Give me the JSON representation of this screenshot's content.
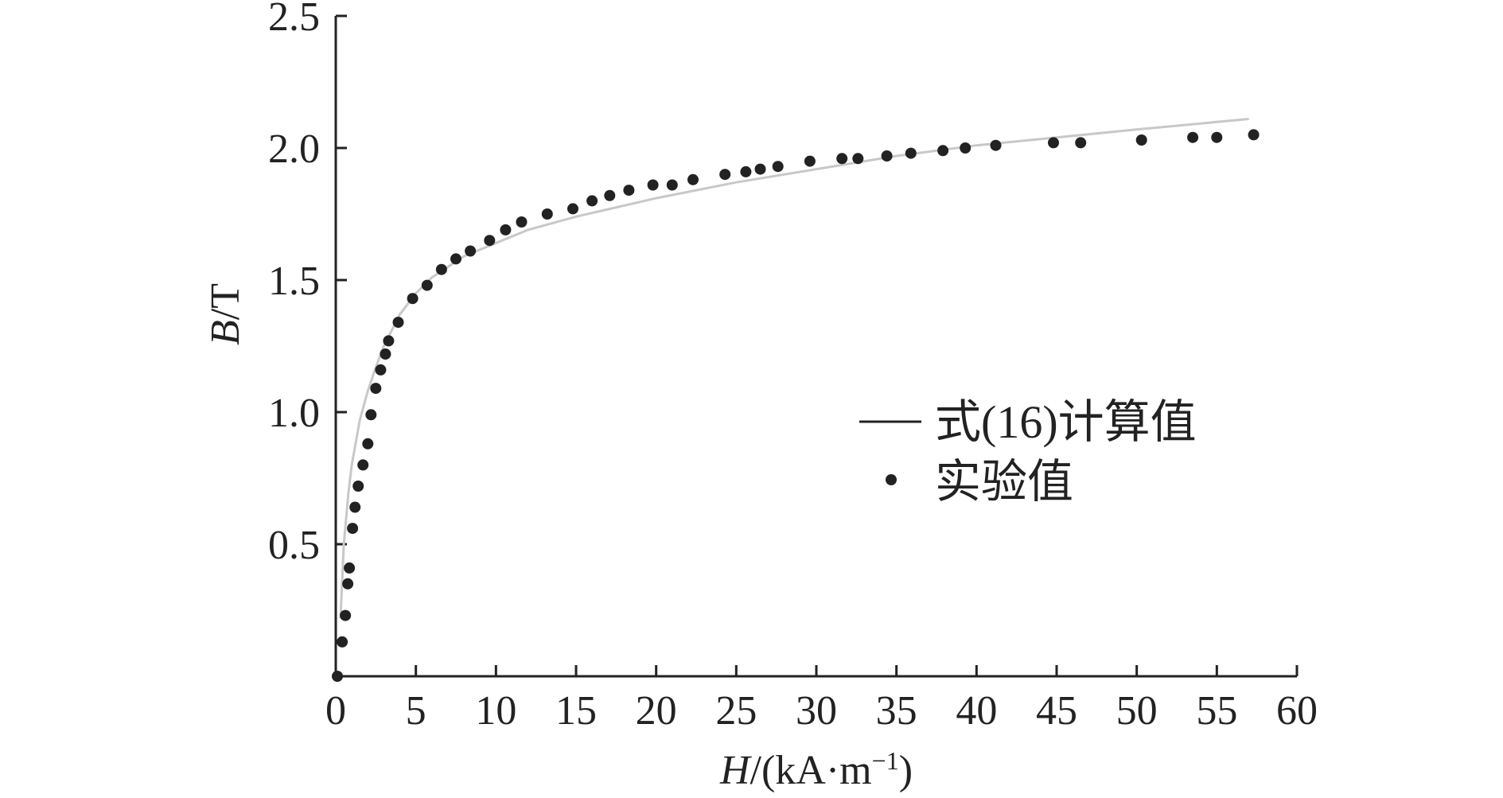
{
  "chart_data": {
    "type": "scatter",
    "xlabel": {
      "var": "H",
      "rest": "/(kA·m",
      "exp": "−1",
      "close": ")"
    },
    "ylabel": {
      "var": "B",
      "rest": "/T"
    },
    "xlim": [
      0,
      60
    ],
    "ylim": [
      0,
      2.5
    ],
    "x_ticks": [
      "0",
      "5",
      "10",
      "15",
      "20",
      "25",
      "30",
      "35",
      "40",
      "45",
      "50",
      "55",
      "60"
    ],
    "y_ticks": [
      "0.5",
      "1.0",
      "1.5",
      "2.0",
      "2.5"
    ],
    "grid": false,
    "legend_position": "right-middle",
    "series": [
      {
        "name": "式(16)计算值",
        "kind": "line",
        "color": "#c8c8c8",
        "x": [
          0.3,
          0.5,
          0.8,
          1.0,
          1.5,
          2.0,
          2.5,
          3.0,
          4.0,
          5.0,
          6.0,
          8.0,
          10.0,
          12.0,
          15.0,
          20.0,
          25.0,
          30.0,
          35.0,
          40.0,
          45.0,
          50.0,
          57.0
        ],
        "y": [
          0.22,
          0.5,
          0.7,
          0.8,
          0.97,
          1.08,
          1.17,
          1.25,
          1.37,
          1.45,
          1.51,
          1.59,
          1.64,
          1.69,
          1.74,
          1.81,
          1.87,
          1.92,
          1.97,
          2.01,
          2.04,
          2.07,
          2.11
        ]
      },
      {
        "name": "实验值",
        "kind": "scatter",
        "color": "#222222",
        "x": [
          0.1,
          0.4,
          0.6,
          0.75,
          0.85,
          1.05,
          1.2,
          1.4,
          1.7,
          2.0,
          2.2,
          2.5,
          2.8,
          3.1,
          3.3,
          3.9,
          4.8,
          5.7,
          6.6,
          7.5,
          8.4,
          9.6,
          10.6,
          11.6,
          13.2,
          14.8,
          16.0,
          17.1,
          18.3,
          19.8,
          21.0,
          22.3,
          24.3,
          25.6,
          26.5,
          27.6,
          29.6,
          31.6,
          32.6,
          34.4,
          35.9,
          37.9,
          39.3,
          41.2,
          44.8,
          46.5,
          50.3,
          53.5,
          55.0,
          57.3
        ],
        "y": [
          0.0,
          0.13,
          0.23,
          0.35,
          0.41,
          0.56,
          0.64,
          0.72,
          0.8,
          0.88,
          0.99,
          1.09,
          1.16,
          1.22,
          1.27,
          1.34,
          1.43,
          1.48,
          1.54,
          1.58,
          1.61,
          1.65,
          1.69,
          1.72,
          1.75,
          1.77,
          1.8,
          1.82,
          1.84,
          1.86,
          1.86,
          1.88,
          1.9,
          1.91,
          1.92,
          1.93,
          1.95,
          1.96,
          1.96,
          1.97,
          1.98,
          1.99,
          2.0,
          2.01,
          2.02,
          2.02,
          2.03,
          2.04,
          2.04,
          2.05
        ]
      }
    ]
  }
}
